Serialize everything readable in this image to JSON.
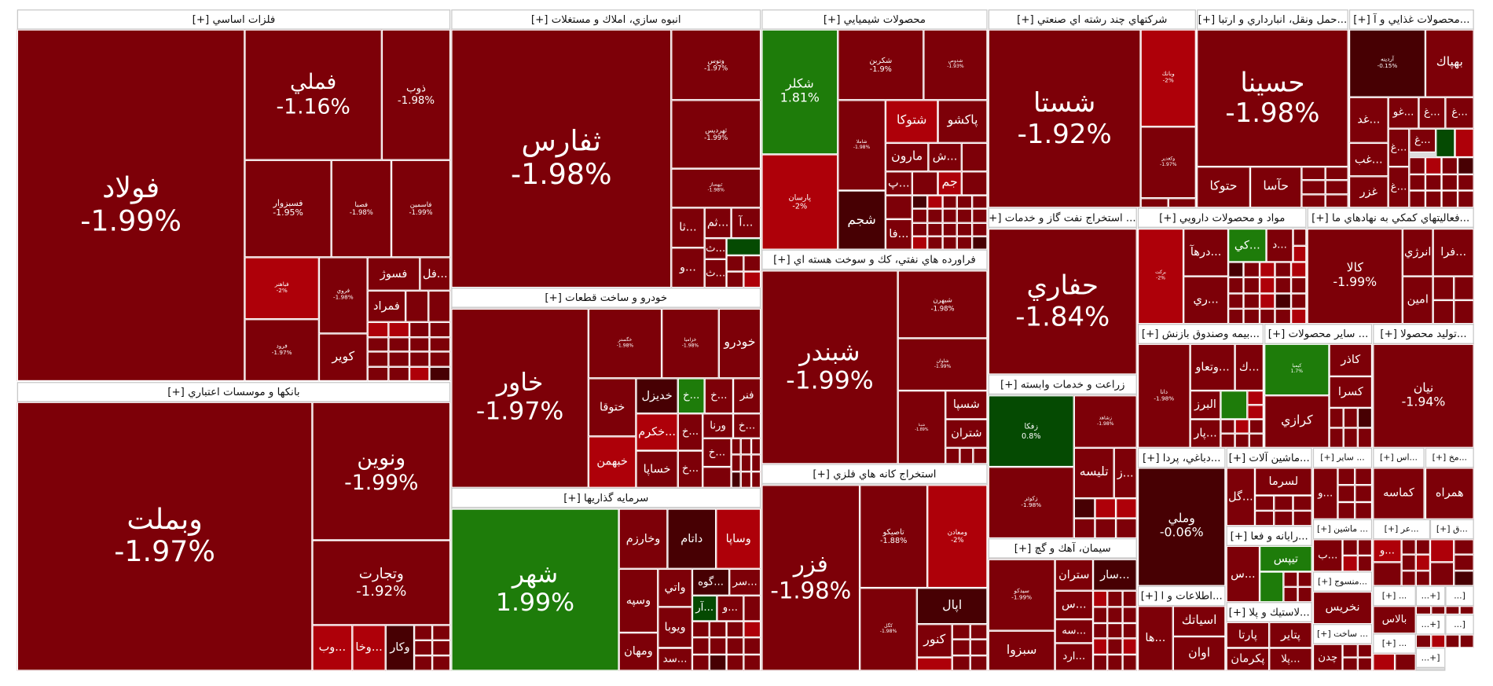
{
  "colors": {
    "down": "#7d0008",
    "down_strong": "#ae0009",
    "flat": "#470003",
    "up": "#1e7c0a",
    "up_dark": "#054a02"
  },
  "sectors": [
    {
      "title": "فلزات اساسي [+]",
      "tiles": [
        {
          "label": "فولاد",
          "pct": "-1.99%",
          "color": "#7d0008"
        },
        {
          "label": "فملي",
          "pct": "-1.16%",
          "color": "#7d0008"
        },
        {
          "label": "ذوب",
          "pct": "-1.98%",
          "color": "#7d0008"
        },
        {
          "label": "فسبزوار",
          "pct": "-1.95%",
          "color": "#7d0008"
        },
        {
          "label": "فصبا",
          "pct": "-1.98%",
          "color": "#7d0008"
        },
        {
          "label": "فاسمين",
          "pct": "-1.99%",
          "color": "#7d0008"
        },
        {
          "label": "فباهنر",
          "pct": "-2%",
          "color": "#ae0009"
        },
        {
          "label": "فرود",
          "pct": "-1.97%",
          "color": "#7d0008"
        },
        {
          "label": "فروي",
          "pct": "-1.98%",
          "color": "#7d0008"
        },
        {
          "label": "كوير",
          "color": "#7d0008"
        },
        {
          "label": "فسوژ",
          "color": "#7d0008"
        },
        {
          "label": "...فل",
          "color": "#7d0008"
        },
        {
          "label": "فمراد",
          "color": "#7d0008"
        }
      ]
    },
    {
      "title": "انبوه سازي، املاك و مستغلات [+]",
      "tiles": [
        {
          "label": "ثفارس",
          "pct": "-1.98%",
          "color": "#7d0008"
        },
        {
          "label": "وتوس",
          "pct": "-1.97%",
          "color": "#7d0008"
        },
        {
          "label": "ثهرديس",
          "pct": "-1.99%",
          "color": "#7d0008"
        },
        {
          "label": "ثبهساز",
          "pct": "-1.98%",
          "color": "#7d0008"
        },
        {
          "label": "...ثا",
          "color": "#7d0008"
        },
        {
          "label": "...ثم",
          "color": "#7d0008"
        },
        {
          "label": "...آ",
          "color": "#7d0008"
        },
        {
          "label": "...ث",
          "color": "#7d0008"
        },
        {
          "label": "",
          "color": "#054a02"
        },
        {
          "label": "...و",
          "color": "#7d0008"
        },
        {
          "label": "...ث",
          "color": "#7d0008"
        }
      ]
    },
    {
      "title": "خودرو و ساخت قطعات [+]",
      "tiles": [
        {
          "label": "خاور",
          "pct": "-1.97%",
          "color": "#7d0008"
        },
        {
          "label": "خگستر",
          "pct": "-1.98%",
          "color": "#7d0008"
        },
        {
          "label": "خزاميا",
          "pct": "-1.98%",
          "color": "#7d0008"
        },
        {
          "label": "خودرو",
          "color": "#7d0008"
        },
        {
          "label": "ختوقا",
          "color": "#7d0008"
        },
        {
          "label": "خبهمن",
          "color": "#ae0009"
        },
        {
          "label": "خديزل",
          "color": "#470003"
        },
        {
          "label": "...خ",
          "color": "#1e7c0a"
        },
        {
          "label": "...خ",
          "color": "#7d0008"
        },
        {
          "label": "فنر",
          "color": "#7d0008"
        },
        {
          "label": "...خكرم",
          "color": "#ae0009"
        },
        {
          "label": "...خ",
          "color": "#7d0008"
        },
        {
          "label": "ورنا",
          "color": "#7d0008"
        },
        {
          "label": "...خ",
          "color": "#7d0008"
        },
        {
          "label": "خساپا",
          "color": "#7d0008"
        },
        {
          "label": "...خ",
          "color": "#7d0008"
        },
        {
          "label": "...خ",
          "color": "#7d0008"
        }
      ]
    },
    {
      "title": "سرمايه گذاريها [+]",
      "tiles": [
        {
          "label": "شهر",
          "pct": "1.99%",
          "color": "#1e7c0a"
        },
        {
          "label": "وخارزم",
          "color": "#7d0008"
        },
        {
          "label": "داتام",
          "color": "#470003"
        },
        {
          "label": "وساپا",
          "color": "#ae0009"
        },
        {
          "label": "وسپه",
          "color": "#7d0008"
        },
        {
          "label": "ومهان",
          "color": "#7d0008"
        },
        {
          "label": "واتي",
          "color": "#7d0008"
        },
        {
          "label": "ويوبا",
          "color": "#7d0008"
        },
        {
          "label": "...سد",
          "color": "#7d0008"
        },
        {
          "label": "...گوه",
          "color": "#470003"
        },
        {
          "label": "...سر",
          "color": "#7d0008"
        },
        {
          "label": "...آر",
          "color": "#054a02"
        },
        {
          "label": "...و",
          "color": "#7d0008"
        }
      ]
    },
    {
      "title": "بانكها و موسسات اعتباري [+]",
      "tiles": [
        {
          "label": "وبملت",
          "pct": "-1.97%",
          "color": "#7d0008"
        },
        {
          "label": "ونوين",
          "pct": "-1.99%",
          "color": "#7d0008"
        },
        {
          "label": "وتجارت",
          "pct": "-1.92%",
          "color": "#7d0008"
        },
        {
          "label": "...وب",
          "color": "#ae0009"
        },
        {
          "label": "...وخا",
          "color": "#ae0009"
        },
        {
          "label": "وكار",
          "color": "#470003"
        }
      ]
    },
    {
      "title": "محصولات شيميايي [+]",
      "tiles": [
        {
          "label": "شكلر",
          "pct": "1.81%",
          "color": "#1e7c0a"
        },
        {
          "label": "پارسان",
          "pct": "-2%",
          "color": "#ae0009"
        },
        {
          "label": "شكربن",
          "pct": "-1.9%",
          "color": "#7d0008"
        },
        {
          "label": "شدوص",
          "pct": "-1.93%",
          "color": "#7d0008"
        },
        {
          "label": "شاملا",
          "pct": "-1.98%",
          "color": "#7d0008"
        },
        {
          "label": "شجم",
          "color": "#470003"
        },
        {
          "label": "شتوكا",
          "color": "#ae0009"
        },
        {
          "label": "پاكشو",
          "color": "#7d0008"
        },
        {
          "label": "مارون",
          "color": "#7d0008"
        },
        {
          "label": "...ش",
          "color": "#7d0008"
        },
        {
          "label": "",
          "color": "#7d0008"
        },
        {
          "label": "...پ",
          "color": "#7d0008"
        },
        {
          "label": "",
          "color": "#7d0008"
        },
        {
          "label": "جم",
          "color": "#ae0009"
        },
        {
          "label": "",
          "color": "#7d0008"
        },
        {
          "label": "...فا",
          "color": "#7d0008"
        }
      ]
    },
    {
      "title": "فراورده هاي نفتي، كك و سوخت هسته اي [+]",
      "tiles": [
        {
          "label": "شبندر",
          "pct": "-1.99%",
          "color": "#7d0008"
        },
        {
          "label": "شبهرن",
          "pct": "-1.98%",
          "color": "#7d0008"
        },
        {
          "label": "شاوان",
          "pct": "-1.99%",
          "color": "#7d0008"
        },
        {
          "label": "شپنا",
          "pct": "-1.89%",
          "color": "#7d0008"
        },
        {
          "label": "شسپا",
          "color": "#7d0008"
        },
        {
          "label": "شتران",
          "color": "#7d0008"
        }
      ]
    },
    {
      "title": "استخراج كانه هاي فلزي [+]",
      "tiles": [
        {
          "label": "فزر",
          "pct": "-1.98%",
          "color": "#7d0008"
        },
        {
          "label": "تاصيكو",
          "pct": "-1.88%",
          "color": "#7d0008"
        },
        {
          "label": "ومعادن",
          "pct": "-2%",
          "color": "#ae0009"
        },
        {
          "label": "كگل",
          "pct": "-1.98%",
          "color": "#7d0008"
        },
        {
          "label": "اپال",
          "color": "#470003"
        },
        {
          "label": "كنور",
          "color": "#7d0008"
        }
      ]
    },
    {
      "title": "شركتهاي چند رشته اي صنعتي [+]",
      "tiles": [
        {
          "label": "شستا",
          "pct": "-1.92%",
          "color": "#7d0008"
        },
        {
          "label": "وبانك",
          "pct": "-2%",
          "color": "#ae0009"
        },
        {
          "label": "وكغدير",
          "pct": "-1.97%",
          "color": "#7d0008"
        }
      ]
    },
    {
      "title": "...حمل ونقل، انبارداري و ارتبا [+]",
      "tiles": [
        {
          "label": "حسينا",
          "pct": "-1.98%",
          "color": "#7d0008"
        },
        {
          "label": "حتوكا",
          "color": "#7d0008"
        },
        {
          "label": "حآسا",
          "color": "#7d0008"
        }
      ]
    },
    {
      "title": "...محصولات غذايي و آ [+]",
      "tiles": [
        {
          "label": "آردينه",
          "pct": "-0.15%",
          "color": "#470003"
        },
        {
          "label": "بهپاك",
          "color": "#7d0008"
        },
        {
          "label": "...غد",
          "color": "#7d0008"
        },
        {
          "label": "...غو",
          "color": "#7d0008"
        },
        {
          "label": "...غ",
          "color": "#7d0008"
        },
        {
          "label": "...غ",
          "color": "#7d0008"
        },
        {
          "label": "...غب",
          "color": "#7d0008"
        },
        {
          "label": "غزر",
          "color": "#7d0008"
        },
        {
          "label": "...غ",
          "color": "#7d0008"
        },
        {
          "label": "...غ",
          "color": "#7d0008"
        },
        {
          "label": "...غ",
          "color": "#7d0008"
        },
        {
          "label": "",
          "color": "#054a02"
        }
      ]
    },
    {
      "title": "... استخراج نفت گاز و خدمات [+]",
      "tiles": [
        {
          "label": "حفاري",
          "pct": "-1.84%",
          "color": "#7d0008"
        }
      ]
    },
    {
      "title": "مواد و محصولات دارويي [+]",
      "tiles": [
        {
          "label": "بركت",
          "pct": "-2%",
          "color": "#ae0009"
        },
        {
          "label": "...درهآ",
          "color": "#7d0008"
        },
        {
          "label": "...ري",
          "color": "#7d0008"
        },
        {
          "label": "...كي",
          "color": "#1e7c0a"
        },
        {
          "label": "...د",
          "color": "#7d0008"
        }
      ]
    },
    {
      "title": "...فعاليتهاي كمكي به نهادهاي ما [+]",
      "tiles": [
        {
          "label": "كالا",
          "pct": "-1.99%",
          "color": "#7d0008"
        },
        {
          "label": "انرژي",
          "color": "#7d0008"
        },
        {
          "label": "...فرا",
          "color": "#7d0008"
        },
        {
          "label": "امين",
          "color": "#7d0008"
        }
      ]
    },
    {
      "title": "زراعت و خدمات وابسته [+]",
      "tiles": [
        {
          "label": "زفكا",
          "pct": "0.8%",
          "color": "#054a02"
        },
        {
          "label": "زكوثر",
          "pct": "-1.98%",
          "color": "#7d0008"
        },
        {
          "label": "زشاهد",
          "pct": "-1.98%",
          "color": "#7d0008"
        },
        {
          "label": "تليسه",
          "color": "#7d0008"
        },
        {
          "label": "...ز",
          "color": "#7d0008"
        }
      ]
    },
    {
      "title": "سيمان، آهك و گچ [+]",
      "tiles": [
        {
          "label": "سيدكو",
          "pct": "-1.99%",
          "color": "#7d0008"
        },
        {
          "label": "سبزوا",
          "color": "#7d0008"
        },
        {
          "label": "ستران",
          "color": "#7d0008"
        },
        {
          "label": "...سار",
          "color": "#470003"
        },
        {
          "label": "...س",
          "color": "#7d0008"
        },
        {
          "label": "...سه",
          "color": "#7d0008"
        },
        {
          "label": "...ارد",
          "color": "#7d0008"
        }
      ]
    },
    {
      "title": "...بيمه وصندوق بازنش [+]",
      "tiles": [
        {
          "label": "دانا",
          "pct": "-1.98%",
          "color": "#7d0008"
        },
        {
          "label": "...وتعاو",
          "color": "#7d0008"
        },
        {
          "label": "...ك",
          "color": "#7d0008"
        },
        {
          "label": "البرز",
          "color": "#7d0008"
        },
        {
          "label": "",
          "color": "#1e7c0a"
        },
        {
          "label": "...پار",
          "color": "#7d0008"
        }
      ]
    },
    {
      "title": "... ساير محصولات [+]",
      "tiles": [
        {
          "label": "كيميا",
          "pct": "1.7%",
          "color": "#1e7c0a"
        },
        {
          "label": "كاذر",
          "color": "#7d0008"
        },
        {
          "label": "كسرا",
          "color": "#7d0008"
        },
        {
          "label": "كرازي",
          "color": "#7d0008"
        }
      ]
    },
    {
      "title": "...توليد محصولا [+]",
      "tiles": [
        {
          "label": "نيان",
          "pct": "-1.94%",
          "color": "#7d0008"
        }
      ]
    },
    {
      "title": "...دباغي، پردا [+]",
      "tiles": [
        {
          "label": "وملي",
          "pct": "-0.06%",
          "color": "#470003"
        }
      ]
    },
    {
      "title": "...اطلاعات و ا [+]",
      "tiles": [
        {
          "label": "...ها",
          "color": "#7d0008"
        },
        {
          "label": "اسياتك",
          "color": "#7d0008"
        },
        {
          "label": "اوان",
          "color": "#7d0008"
        }
      ]
    },
    {
      "title": "...ماشين آلات [+]",
      "tiles": [
        {
          "label": "...گل",
          "color": "#7d0008"
        },
        {
          "label": "لسرما",
          "color": "#7d0008"
        }
      ]
    },
    {
      "title": "...رايانه و فعا [+]",
      "tiles": [
        {
          "label": "...س",
          "color": "#7d0008"
        },
        {
          "label": "تيپس",
          "color": "#1e7c0a"
        },
        {
          "label": "",
          "color": "#1e7c0a"
        }
      ]
    },
    {
      "title": "...لاستيك و پلا [+]",
      "tiles": [
        {
          "label": "پارتا",
          "color": "#7d0008"
        },
        {
          "label": "پتاير",
          "color": "#7d0008"
        },
        {
          "label": "پكرمان",
          "color": "#7d0008"
        },
        {
          "label": "...پلا",
          "color": "#7d0008"
        }
      ]
    },
    {
      "title": "... ساير [+]",
      "tiles": [
        {
          "label": "...و",
          "color": "#7d0008"
        }
      ]
    },
    {
      "title": "... ماشين [+]",
      "tiles": [
        {
          "label": "...ب",
          "color": "#7d0008"
        }
      ]
    },
    {
      "title": "...منسوج [+]",
      "tiles": [
        {
          "label": "نخريس",
          "color": "#7d0008"
        }
      ]
    },
    {
      "title": "... ساخت [+]",
      "tiles": [
        {
          "label": "چدن",
          "color": "#7d0008"
        }
      ]
    },
    {
      "title": "...اس [+]",
      "tiles": [
        {
          "label": "كماسه",
          "color": "#7d0008"
        }
      ]
    },
    {
      "title": "...مخ [+]",
      "tiles": [
        {
          "label": "همراه",
          "color": "#7d0008"
        }
      ]
    },
    {
      "title": "...عر [+]",
      "tiles": [
        {
          "label": "...و",
          "color": "#ae0009"
        }
      ]
    },
    {
      "title": "...ق [+]",
      "tiles": [
        {
          "label": "",
          "color": "#ae0009"
        }
      ]
    },
    {
      "title": "... [+]",
      "tiles": [
        {
          "label": "بالاس",
          "color": "#7d0008"
        }
      ]
    },
    {
      "title": "[+...",
      "tiles": []
    },
    {
      "title": "[...",
      "tiles": []
    },
    {
      "title": "... [+]",
      "tiles": []
    },
    {
      "title": "[+...",
      "tiles": []
    },
    {
      "title": "[...",
      "tiles": []
    },
    {
      "title": "[+...",
      "tiles": []
    }
  ]
}
